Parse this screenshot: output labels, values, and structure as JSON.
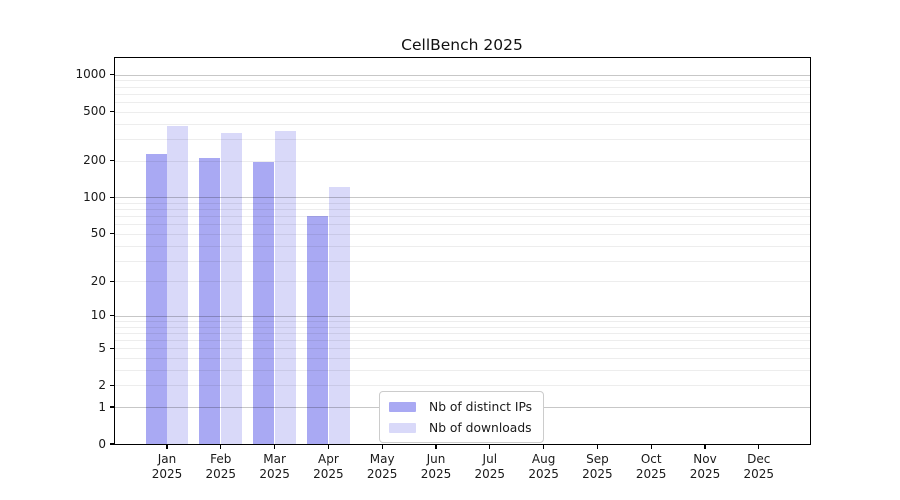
{
  "chart_data": {
    "type": "bar",
    "title": "CellBench 2025",
    "categories": [
      {
        "month": "Jan",
        "year": "2025"
      },
      {
        "month": "Feb",
        "year": "2025"
      },
      {
        "month": "Mar",
        "year": "2025"
      },
      {
        "month": "Apr",
        "year": "2025"
      },
      {
        "month": "May",
        "year": "2025"
      },
      {
        "month": "Jun",
        "year": "2025"
      },
      {
        "month": "Jul",
        "year": "2025"
      },
      {
        "month": "Aug",
        "year": "2025"
      },
      {
        "month": "Sep",
        "year": "2025"
      },
      {
        "month": "Oct",
        "year": "2025"
      },
      {
        "month": "Nov",
        "year": "2025"
      },
      {
        "month": "Dec",
        "year": "2025"
      }
    ],
    "series": [
      {
        "name": "Nb of distinct IPs",
        "color": "#a9a9f3",
        "values": [
          225,
          210,
          195,
          70,
          0,
          0,
          0,
          0,
          0,
          0,
          0,
          0
        ]
      },
      {
        "name": "Nb of downloads",
        "color": "#d9d9f9",
        "values": [
          385,
          335,
          350,
          122,
          0,
          0,
          0,
          0,
          0,
          0,
          0,
          0
        ]
      }
    ],
    "y_axis": {
      "scale": "log1p",
      "ticks": [
        0,
        1,
        2,
        5,
        10,
        20,
        50,
        100,
        200,
        500,
        1000
      ],
      "top_value": 1370,
      "major_grid_decades": [
        1,
        10,
        100,
        1000
      ],
      "minor_grid_on": true
    },
    "legend": {
      "position": "lower center",
      "border_color": "#cccccc"
    },
    "grid_over_bars": true
  },
  "colors": {
    "axis_border": "#000000",
    "text": "#1a1a1a",
    "background": "#ffffff"
  }
}
